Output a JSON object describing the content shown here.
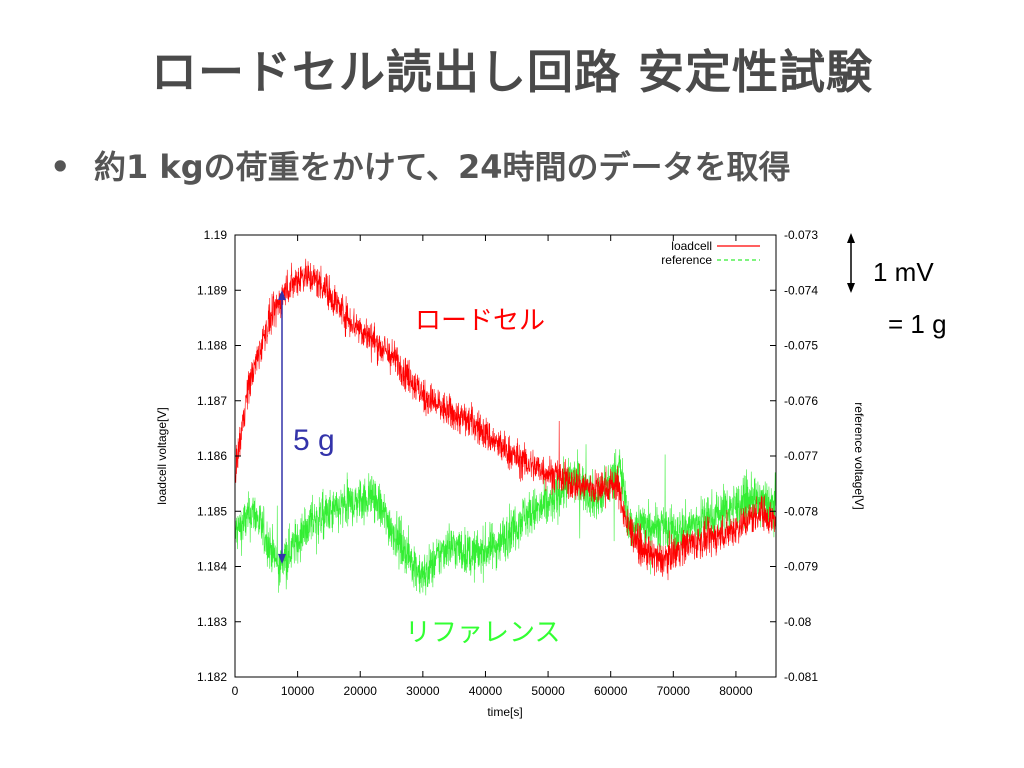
{
  "slide": {
    "title": "ロードセル読出し回路 安定性試験",
    "bullet_symbol": "•",
    "bullet_text": "約1 kgの荷重をかけて、24時間のデータを取得"
  },
  "chart_data": {
    "type": "line",
    "x": {
      "label": "time[s]",
      "range": [
        0,
        86400
      ],
      "ticks": [
        0,
        10000,
        20000,
        30000,
        40000,
        50000,
        60000,
        70000,
        80000
      ]
    },
    "y_left": {
      "label": "loadcell voltage[V]",
      "range": [
        1.182,
        1.19
      ],
      "ticks": [
        "1.182",
        "1.183",
        "1.184",
        "1.185",
        "1.186",
        "1.187",
        "1.188",
        "1.189",
        "1.19"
      ]
    },
    "y_right": {
      "label": "reference voltage[V]",
      "range": [
        -0.081,
        -0.073
      ],
      "ticks": [
        "-0.081",
        "-0.08",
        "-0.079",
        "-0.078",
        "-0.077",
        "-0.076",
        "-0.075",
        "-0.074",
        "-0.073"
      ]
    },
    "legend_position": "top-right",
    "series": [
      {
        "name": "loadcell",
        "axis": "left",
        "color": "#ff0000",
        "dash": "solid",
        "noise": 0.0003,
        "x": [
          0,
          2000,
          5000,
          8000,
          11000,
          14000,
          18000,
          22000,
          26000,
          30000,
          34000,
          38000,
          42000,
          46000,
          50000,
          54000,
          58000,
          61000,
          62500,
          65000,
          68000,
          72000,
          76000,
          80000,
          84000,
          86400
        ],
        "y": [
          1.1857,
          1.1872,
          1.1883,
          1.189,
          1.1893,
          1.1891,
          1.1885,
          1.1881,
          1.1877,
          1.1871,
          1.1868,
          1.1866,
          1.1862,
          1.1859,
          1.1857,
          1.1855,
          1.1854,
          1.1855,
          1.1848,
          1.1843,
          1.1841,
          1.1844,
          1.1845,
          1.1847,
          1.185,
          1.1848
        ]
      },
      {
        "name": "reference",
        "axis": "right",
        "color": "#33ee33",
        "dash": "dashed",
        "noise": 0.0004,
        "x": [
          0,
          3000,
          7000,
          12000,
          18000,
          22000,
          26000,
          30000,
          34000,
          38000,
          42000,
          46000,
          50000,
          54000,
          58000,
          61500,
          63000,
          66000,
          70000,
          74000,
          78000,
          82000,
          86400
        ],
        "y": [
          -0.0784,
          -0.078,
          -0.079,
          -0.0782,
          -0.0779,
          -0.0777,
          -0.0785,
          -0.0792,
          -0.0786,
          -0.0788,
          -0.0786,
          -0.0781,
          -0.0779,
          -0.0774,
          -0.0778,
          -0.0772,
          -0.0783,
          -0.0782,
          -0.0784,
          -0.0782,
          -0.078,
          -0.0778,
          -0.0779
        ]
      }
    ],
    "annotations": {
      "loadcell_label": "ロードセル",
      "reference_label": "リファレンス",
      "drift_label": "5 g",
      "scale_label_top": "1 mV",
      "scale_label_bottom": "= 1 g"
    }
  }
}
